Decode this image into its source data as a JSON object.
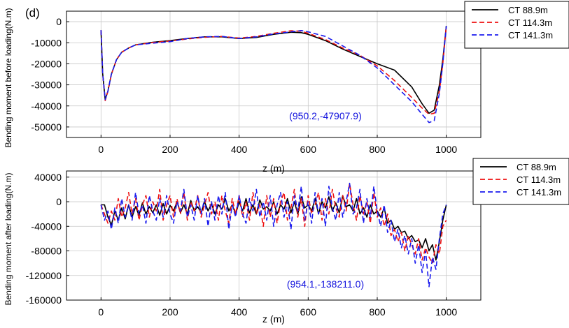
{
  "chart_data": [
    {
      "type": "line",
      "panel_label": "(d)",
      "xlabel": "z (m)",
      "ylabel": "Bending moment before loading(N.m)",
      "xlim": [
        -100,
        1100
      ],
      "ylim": [
        -55000,
        5000
      ],
      "xticks": [
        0,
        200,
        400,
        600,
        800,
        1000
      ],
      "yticks": [
        0,
        -10000,
        -20000,
        -30000,
        -40000,
        -50000
      ],
      "grid": true,
      "legend_position": "top-right, outside plot",
      "annotation": {
        "text": "(950.2,-47907.9)",
        "color": "#1a1aee"
      },
      "series": [
        {
          "name": "CT 88.9m",
          "color": "#000000",
          "dash": "solid",
          "x": [
            0,
            5,
            12,
            20,
            30,
            45,
            60,
            80,
            100,
            150,
            200,
            250,
            300,
            350,
            400,
            450,
            500,
            550,
            580,
            600,
            650,
            700,
            750,
            800,
            850,
            900,
            930,
            950,
            965,
            980,
            990,
            1000
          ],
          "y": [
            -4000,
            -25000,
            -37000,
            -33000,
            -25000,
            -18000,
            -14500,
            -12500,
            -11000,
            -9800,
            -9000,
            -8000,
            -7200,
            -7200,
            -8000,
            -7500,
            -6000,
            -5000,
            -5200,
            -6000,
            -9000,
            -13000,
            -16500,
            -20000,
            -23000,
            -31000,
            -39000,
            -43500,
            -42000,
            -30000,
            -18000,
            -2000
          ]
        },
        {
          "name": "CT 114.3m",
          "color": "#ee1111",
          "dash": "7,4",
          "x": [
            0,
            5,
            12,
            20,
            30,
            45,
            60,
            80,
            100,
            150,
            200,
            250,
            300,
            350,
            400,
            450,
            500,
            550,
            580,
            600,
            650,
            700,
            750,
            800,
            850,
            900,
            930,
            950,
            965,
            980,
            990,
            1000
          ],
          "y": [
            -4000,
            -25000,
            -37500,
            -33000,
            -25000,
            -18000,
            -14500,
            -12500,
            -11000,
            -9900,
            -9200,
            -8200,
            -7400,
            -7000,
            -7800,
            -7000,
            -5500,
            -4300,
            -4500,
            -5500,
            -8500,
            -12500,
            -16000,
            -21000,
            -28000,
            -36000,
            -41000,
            -44000,
            -43500,
            -33000,
            -20000,
            -2000
          ]
        },
        {
          "name": "CT 141.3m",
          "color": "#1a1aee",
          "dash": "7,4",
          "x": [
            0,
            5,
            12,
            20,
            30,
            45,
            60,
            80,
            100,
            150,
            200,
            250,
            300,
            350,
            400,
            450,
            500,
            550,
            580,
            600,
            650,
            700,
            750,
            800,
            850,
            900,
            930,
            950,
            965,
            980,
            990,
            1000
          ],
          "y": [
            -4000,
            -25000,
            -37000,
            -33000,
            -25000,
            -18000,
            -14500,
            -12500,
            -11000,
            -10200,
            -9500,
            -8000,
            -7200,
            -7000,
            -8000,
            -7200,
            -5800,
            -4800,
            -4200,
            -4800,
            -7000,
            -11500,
            -16000,
            -22000,
            -30000,
            -38000,
            -44000,
            -47900,
            -47000,
            -34000,
            -20000,
            -2000
          ]
        }
      ]
    },
    {
      "type": "line",
      "xlabel": "z (m)",
      "ylabel": "Bending moment after loading(N.m)",
      "xlim": [
        -100,
        1100
      ],
      "ylim": [
        -160000,
        50000
      ],
      "xticks": [
        0,
        200,
        400,
        600,
        800,
        1000
      ],
      "yticks": [
        40000,
        0,
        -40000,
        -80000,
        -120000,
        -160000
      ],
      "grid": true,
      "legend_position": "top-right, outside plot",
      "annotation": {
        "text": "(954.1,-138211.0)",
        "color": "#1a1aee"
      },
      "series": [
        {
          "name": "CT 88.9m",
          "color": "#000000",
          "dash": "solid",
          "x": [
            0,
            10,
            20,
            30,
            40,
            50,
            60,
            70,
            80,
            90,
            100,
            110,
            120,
            130,
            140,
            150,
            160,
            170,
            180,
            190,
            200,
            210,
            220,
            230,
            240,
            250,
            260,
            270,
            280,
            290,
            300,
            310,
            320,
            330,
            340,
            350,
            360,
            370,
            380,
            390,
            400,
            410,
            420,
            430,
            440,
            450,
            460,
            470,
            480,
            490,
            500,
            510,
            520,
            530,
            540,
            550,
            560,
            570,
            580,
            590,
            600,
            610,
            620,
            630,
            640,
            650,
            660,
            670,
            680,
            690,
            700,
            710,
            720,
            730,
            740,
            750,
            760,
            770,
            780,
            790,
            800,
            810,
            820,
            830,
            840,
            850,
            860,
            870,
            880,
            890,
            900,
            910,
            920,
            930,
            940,
            950,
            960,
            970,
            980,
            990,
            1000
          ],
          "y": [
            -5000,
            -5000,
            -25000,
            -38000,
            -15000,
            -30000,
            -10000,
            -28000,
            -5000,
            -25000,
            -8000,
            -22000,
            -2000,
            -20000,
            -8000,
            -18000,
            -5000,
            -22000,
            -3000,
            -20000,
            -6000,
            -15000,
            0,
            -18000,
            -5000,
            -20000,
            2000,
            -15000,
            -8000,
            -18000,
            0,
            -15000,
            -3000,
            -20000,
            -5000,
            -12000,
            5000,
            -15000,
            -5000,
            -20000,
            0,
            -15000,
            5000,
            -18000,
            -5000,
            -20000,
            3000,
            -12000,
            -8000,
            -15000,
            0,
            -20000,
            -5000,
            -12000,
            5000,
            -18000,
            0,
            -20000,
            8000,
            -10000,
            -5000,
            -15000,
            5000,
            -20000,
            0,
            -10000,
            8000,
            -15000,
            -2000,
            -18000,
            10000,
            -8000,
            -5000,
            -15000,
            5000,
            -20000,
            -10000,
            -25000,
            -5000,
            -20000,
            -15000,
            -25000,
            -10000,
            -35000,
            -30000,
            -45000,
            -40000,
            -50000,
            -48000,
            -60000,
            -55000,
            -65000,
            -62000,
            -75000,
            -60000,
            -80000,
            -70000,
            -95000,
            -65000,
            -30000,
            -5000
          ]
        },
        {
          "name": "CT 114.3m",
          "color": "#ee1111",
          "dash": "7,4",
          "x": [
            0,
            10,
            20,
            30,
            40,
            50,
            60,
            70,
            80,
            90,
            100,
            110,
            120,
            130,
            140,
            150,
            160,
            170,
            180,
            190,
            200,
            210,
            220,
            230,
            240,
            250,
            260,
            270,
            280,
            290,
            300,
            310,
            320,
            330,
            340,
            350,
            360,
            370,
            380,
            390,
            400,
            410,
            420,
            430,
            440,
            450,
            460,
            470,
            480,
            490,
            500,
            510,
            520,
            530,
            540,
            550,
            560,
            570,
            580,
            590,
            600,
            610,
            620,
            630,
            640,
            650,
            660,
            670,
            680,
            690,
            700,
            710,
            720,
            730,
            740,
            750,
            760,
            770,
            780,
            790,
            800,
            810,
            820,
            830,
            840,
            850,
            860,
            870,
            880,
            890,
            900,
            910,
            920,
            930,
            940,
            950,
            960,
            970,
            980,
            990,
            1000
          ],
          "y": [
            -5000,
            -20000,
            -35000,
            -15000,
            -30000,
            5000,
            -25000,
            -10000,
            15000,
            -20000,
            5000,
            -30000,
            -5000,
            10000,
            -25000,
            0,
            -15000,
            20000,
            -30000,
            -5000,
            10000,
            -25000,
            5000,
            -20000,
            15000,
            -30000,
            0,
            -15000,
            10000,
            -25000,
            -5000,
            15000,
            -20000,
            0,
            -30000,
            10000,
            -15000,
            -35000,
            5000,
            -20000,
            10000,
            -25000,
            0,
            -30000,
            15000,
            -20000,
            -5000,
            -40000,
            10000,
            -25000,
            5000,
            -35000,
            0,
            15000,
            -30000,
            -10000,
            20000,
            -25000,
            5000,
            -40000,
            10000,
            -20000,
            -5000,
            15000,
            -30000,
            5000,
            -20000,
            20000,
            -10000,
            -25000,
            10000,
            -15000,
            30000,
            -5000,
            -30000,
            10000,
            -20000,
            0,
            -35000,
            15000,
            -25000,
            -10000,
            -40000,
            -20000,
            -55000,
            -45000,
            -65000,
            -50000,
            -80000,
            -55000,
            -70000,
            -85000,
            -60000,
            -95000,
            -75000,
            -90000,
            -100000,
            -70000,
            -85000,
            -40000,
            -30000
          ]
        },
        {
          "name": "CT 141.3m",
          "color": "#1a1aee",
          "dash": "7,4",
          "x": [
            0,
            10,
            20,
            30,
            40,
            50,
            60,
            70,
            80,
            90,
            100,
            110,
            120,
            130,
            140,
            150,
            160,
            170,
            180,
            190,
            200,
            210,
            220,
            230,
            240,
            250,
            260,
            270,
            280,
            290,
            300,
            310,
            320,
            330,
            340,
            350,
            360,
            370,
            380,
            390,
            400,
            410,
            420,
            430,
            440,
            450,
            460,
            470,
            480,
            490,
            500,
            510,
            520,
            530,
            540,
            550,
            560,
            570,
            580,
            590,
            600,
            610,
            620,
            630,
            640,
            650,
            660,
            670,
            680,
            690,
            700,
            710,
            720,
            730,
            740,
            750,
            760,
            770,
            780,
            790,
            800,
            810,
            820,
            830,
            840,
            850,
            860,
            870,
            880,
            890,
            900,
            910,
            920,
            930,
            940,
            950,
            960,
            970,
            980,
            990,
            1000
          ],
          "y": [
            -5000,
            -30000,
            -15000,
            -45000,
            -10000,
            -35000,
            5000,
            -25000,
            -5000,
            -30000,
            15000,
            -20000,
            -5000,
            -35000,
            10000,
            -15000,
            -30000,
            5000,
            -25000,
            10000,
            -20000,
            -35000,
            0,
            -15000,
            20000,
            -25000,
            -5000,
            -30000,
            10000,
            -20000,
            5000,
            -40000,
            0,
            -30000,
            10000,
            -20000,
            15000,
            -45000,
            -5000,
            -25000,
            10000,
            -20000,
            -35000,
            5000,
            -15000,
            20000,
            -25000,
            0,
            -30000,
            10000,
            -40000,
            -5000,
            15000,
            -25000,
            0,
            -45000,
            10000,
            -15000,
            25000,
            -30000,
            0,
            -35000,
            15000,
            -20000,
            5000,
            -40000,
            25000,
            -10000,
            -30000,
            15000,
            -25000,
            0,
            30000,
            -20000,
            -10000,
            20000,
            -35000,
            5000,
            -25000,
            25000,
            -15000,
            -40000,
            -5000,
            -50000,
            -30000,
            -65000,
            -45000,
            -75000,
            -55000,
            -85000,
            -60000,
            -100000,
            -70000,
            -115000,
            -80000,
            -138211,
            -90000,
            -110000,
            -60000,
            -20000,
            -5000
          ]
        }
      ]
    }
  ]
}
